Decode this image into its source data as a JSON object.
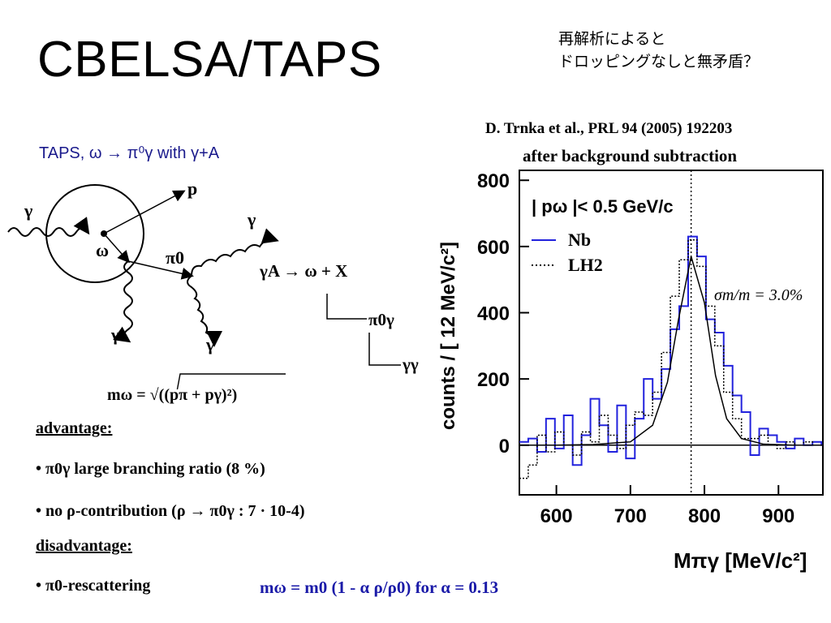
{
  "title": "CBELSA/TAPS",
  "japanese_note": [
    "再解析によると",
    "ドロッピングなしと無矛盾？"
  ],
  "reference": "D. Trnka et al., PRL 94 (2005) 192203",
  "background_note": "after background subtraction",
  "taps_label": "TAPS, ω → π⁰γ with γ+A",
  "diagram": {
    "gamma_in": "γ",
    "proton": "p",
    "omega": "ω",
    "pi0": "π0",
    "gamma_out_right": "γ",
    "gamma_out_bottom1": "γ",
    "gamma_out_bottom2": "γ"
  },
  "reaction": {
    "step1": "γA → ω + X",
    "step2": "π0γ",
    "step3": "γγ"
  },
  "mass_formula": "mω = √((pπ + pγ)²)",
  "advantage_header": "advantage:",
  "advantages": [
    "• π0γ large branching ratio (8 %)",
    "• no ρ-contribution (ρ → π0γ : 7 · 10-4)"
  ],
  "disadvantage_header": "disadvantage:",
  "disadvantages": [
    "• π0-rescattering"
  ],
  "bottom_formula": "mω = m0 (1 - α ρ/ρ0)  for α = 0.13",
  "chart_data": {
    "type": "line",
    "ylabel": "counts / [ 12 MeV/c²]",
    "xlabel": "Mπγ [MeV/c²]",
    "xlim": [
      550,
      960
    ],
    "ylim": [
      -150,
      830
    ],
    "xticks": [
      600,
      700,
      800,
      900
    ],
    "yticks": [
      0,
      200,
      400,
      600,
      800
    ],
    "legend_cut": "| pω |< 0.5 GeV/c",
    "resolution_label": "σm/m = 3.0%",
    "legend_position": "top-left",
    "reference_line_x": 782,
    "series": [
      {
        "name": "Nb",
        "color": "#2222dd",
        "style": "histogram",
        "x": [
          550,
          562,
          574,
          586,
          598,
          610,
          622,
          634,
          646,
          658,
          670,
          682,
          694,
          706,
          718,
          730,
          742,
          754,
          766,
          778,
          790,
          802,
          814,
          826,
          838,
          850,
          862,
          874,
          886,
          898,
          910,
          922,
          934,
          946,
          958
        ],
        "values": [
          10,
          20,
          -20,
          80,
          -10,
          90,
          -60,
          30,
          140,
          60,
          -20,
          120,
          -40,
          80,
          200,
          140,
          230,
          350,
          420,
          630,
          570,
          380,
          340,
          240,
          150,
          100,
          -30,
          50,
          30,
          10,
          -10,
          20,
          0,
          10,
          0
        ]
      },
      {
        "name": "LH2",
        "color": "#000000",
        "style": "dotted",
        "x": [
          550,
          562,
          574,
          586,
          598,
          610,
          622,
          634,
          646,
          658,
          670,
          682,
          694,
          706,
          718,
          730,
          742,
          754,
          766,
          778,
          790,
          802,
          814,
          826,
          838,
          850,
          862,
          874,
          886,
          898,
          910,
          922,
          934,
          946,
          958
        ],
        "values": [
          -100,
          -60,
          30,
          -20,
          40,
          0,
          -30,
          40,
          10,
          90,
          30,
          -10,
          60,
          100,
          90,
          160,
          280,
          450,
          560,
          620,
          540,
          420,
          300,
          160,
          80,
          20,
          20,
          30,
          0,
          -10,
          10,
          0,
          10,
          0,
          0
        ]
      },
      {
        "name": "",
        "color": "#000000",
        "style": "fit",
        "x": [
          550,
          600,
          650,
          700,
          730,
          750,
          765,
          782,
          800,
          815,
          830,
          850,
          880,
          920,
          960
        ],
        "values": [
          0,
          0,
          2,
          10,
          60,
          190,
          380,
          570,
          430,
          210,
          80,
          20,
          3,
          0,
          0
        ]
      }
    ]
  }
}
